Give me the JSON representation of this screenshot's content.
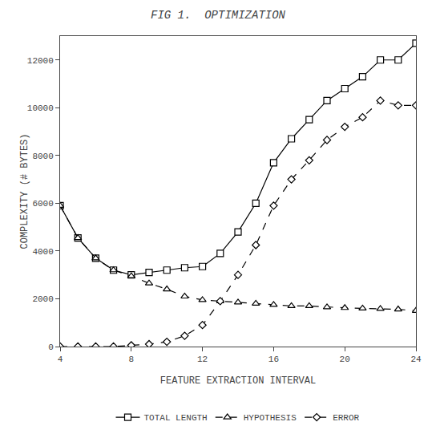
{
  "chart_data": {
    "type": "line",
    "title": "FIG 1.  OPTIMIZATION",
    "xlabel": "FEATURE EXTRACTION INTERVAL",
    "ylabel": "COMPLEXITY (# BYTES)",
    "x": [
      4,
      5,
      6,
      7,
      8,
      9,
      10,
      11,
      12,
      13,
      14,
      15,
      16,
      17,
      18,
      19,
      20,
      21,
      22,
      23,
      24
    ],
    "series": [
      {
        "name": "TOTAL LENGTH",
        "color": "#000000",
        "marker": "square",
        "line_style": "solid",
        "values": [
          5900,
          4550,
          3700,
          3200,
          3000,
          3100,
          3200,
          3300,
          3350,
          3900,
          4800,
          6000,
          7700,
          8700,
          9500,
          10300,
          10800,
          11300,
          12000,
          12000,
          12700
        ]
      },
      {
        "name": "HYPOTHESIS",
        "color": "#000000",
        "marker": "triangle-up",
        "line_style": "dash",
        "values": [
          5900,
          4550,
          3700,
          3200,
          2950,
          2650,
          2400,
          2100,
          1950,
          1900,
          1850,
          1800,
          1750,
          1700,
          1700,
          1650,
          1620,
          1600,
          1580,
          1560,
          1500
        ]
      },
      {
        "name": "ERROR",
        "color": "#000000",
        "marker": "diamond",
        "line_style": "dash",
        "values": [
          0,
          0,
          0,
          0,
          50,
          100,
          200,
          450,
          900,
          1900,
          3000,
          4250,
          5900,
          7000,
          7800,
          8650,
          9200,
          9600,
          10300,
          10100,
          10100
        ]
      }
    ],
    "xlim": [
      4,
      24
    ],
    "ylim": [
      0,
      13000
    ],
    "xticks": [
      4,
      8,
      12,
      16,
      20,
      24
    ],
    "yticks": [
      0,
      2000,
      4000,
      6000,
      8000,
      10000,
      12000
    ],
    "grid": false,
    "legend": "bottom"
  }
}
